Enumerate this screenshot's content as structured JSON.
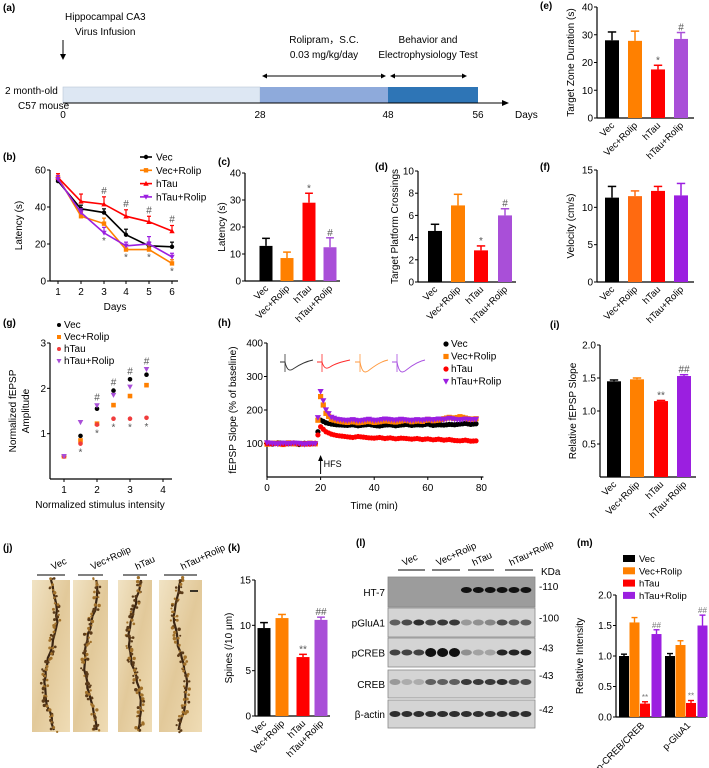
{
  "panel_labels": {
    "a": "(a)",
    "b": "(b)",
    "c": "(c)",
    "d": "(d)",
    "e": "(e)",
    "f": "(f)",
    "g": "(g)",
    "h": "(h)",
    "i": "(i)",
    "j": "(j)",
    "k": "(k)",
    "l": "(l)",
    "m": "(m)"
  },
  "colors": {
    "vec": "#000000",
    "vec_rolip": "#ff8000",
    "htau": "#ff0000",
    "htau_rolip": "#a94fd8",
    "htau_rolip_dark": "#9b1fe0"
  },
  "timeline": {
    "injection_line1": "Hippocampal CA3",
    "injection_line2": "Virus Infusion",
    "drug_line1": "Rolipram，S.C.",
    "drug_line2": "0.03 mg/kg/day",
    "test_line1": "Behavior and",
    "test_line2": "Electrophysiology Test",
    "animal_line1": "2 month-old",
    "animal_line2": "C57  mouse",
    "days": [
      "0",
      "28",
      "48",
      "56"
    ],
    "days_label": "Days",
    "segment_colors": [
      "#dde7f3",
      "#8eaadb",
      "#2e75b6"
    ]
  },
  "chart_data": [
    {
      "id": "b",
      "type": "line",
      "title": "",
      "xlabel": "Days",
      "ylabel": "Latency (s)",
      "x": [
        1,
        2,
        3,
        4,
        5,
        6
      ],
      "xtick_labels": [
        "1",
        "2",
        "3",
        "4",
        "5",
        "6"
      ],
      "ylim": [
        0,
        60
      ],
      "yticks": [
        0,
        20,
        40,
        60
      ],
      "ytick_labels": [
        "0",
        "20",
        "40",
        "60"
      ],
      "legend_position": "top-right",
      "series": [
        {
          "name": "Vec",
          "values": [
            54,
            39,
            37,
            25,
            19,
            18.5
          ],
          "errors": [
            2,
            2,
            2,
            3,
            2,
            2.5
          ]
        },
        {
          "name": "Vec+Rolip",
          "values": [
            56,
            35,
            31,
            17,
            17,
            9.5
          ],
          "errors": [
            2,
            2,
            3,
            2,
            2,
            2
          ]
        },
        {
          "name": "hTau",
          "values": [
            56,
            43,
            41.5,
            35,
            32,
            27
          ],
          "errors": [
            2,
            4,
            4,
            3.5,
            3,
            3
          ]
        },
        {
          "name": "hTau+Rolip",
          "values": [
            55,
            37,
            26,
            19,
            20,
            13
          ],
          "errors": [
            2,
            2,
            3,
            2,
            4,
            2
          ]
        }
      ],
      "annotations": [
        {
          "day": 3,
          "text": "#",
          "position": "above"
        },
        {
          "day": 4,
          "text": "#",
          "position": "above"
        },
        {
          "day": 5,
          "text": "#",
          "position": "above"
        },
        {
          "day": 6,
          "text": "#",
          "position": "above"
        },
        {
          "day": 3,
          "text": "*",
          "position": "below"
        },
        {
          "day": 4,
          "text": "*",
          "position": "below"
        },
        {
          "day": 5,
          "text": "*",
          "position": "below"
        },
        {
          "day": 6,
          "text": "*",
          "position": "below"
        }
      ]
    },
    {
      "id": "c",
      "type": "bar",
      "ylabel": "Latency (s)",
      "categories": [
        "Vec",
        "Vec+Rolip",
        "hTau",
        "hTau+Rolip"
      ],
      "values": [
        13,
        8.5,
        29,
        12.5
      ],
      "errors": [
        2.8,
        2.2,
        3.5,
        3.5
      ],
      "ylim": [
        0,
        40
      ],
      "yticks": [
        0,
        10,
        20,
        30,
        40
      ],
      "ytick_labels": [
        "0",
        "10",
        "20",
        "30",
        "40"
      ],
      "annotations": [
        "",
        "",
        "*",
        "#"
      ]
    },
    {
      "id": "d",
      "type": "bar",
      "ylabel": "Target Platform Crossings",
      "categories": [
        "Vec",
        "Vec+Rolip",
        "hTau",
        "hTau+Rolip"
      ],
      "values": [
        4.6,
        6.9,
        2.85,
        6.0
      ],
      "errors": [
        0.6,
        1.0,
        0.4,
        0.6
      ],
      "ylim": [
        0,
        10
      ],
      "yticks": [
        0,
        2,
        4,
        6,
        8,
        10
      ],
      "ytick_labels": [
        "0",
        "2",
        "4",
        "6",
        "8",
        "10"
      ],
      "annotations": [
        "",
        "",
        "*",
        "#"
      ]
    },
    {
      "id": "e",
      "type": "bar",
      "ylabel": "Target Zone Duration (s)",
      "categories": [
        "Vec",
        "Vec+Rolip",
        "hTau",
        "hTau+Rolip"
      ],
      "values": [
        28,
        27.8,
        17.5,
        28.5
      ],
      "errors": [
        3,
        3.5,
        1.5,
        2.3
      ],
      "ylim": [
        0,
        40
      ],
      "yticks": [
        0,
        10,
        20,
        30,
        40
      ],
      "ytick_labels": [
        "0",
        "10",
        "20",
        "30",
        "40"
      ],
      "annotations": [
        "",
        "",
        "*",
        "#"
      ]
    },
    {
      "id": "f",
      "type": "bar",
      "ylabel": "Velocity (cm/s)",
      "categories": [
        "Vec",
        "Vec+Rolip",
        "hTau",
        "hTau+Rolip"
      ],
      "values": [
        11.3,
        11.5,
        12.2,
        11.6
      ],
      "errors": [
        1.5,
        0.7,
        0.6,
        1.6
      ],
      "ylim": [
        0,
        15
      ],
      "yticks": [
        0,
        5,
        10,
        15
      ],
      "ytick_labels": [
        "0",
        "5",
        "10",
        "15"
      ],
      "annotations": [
        "",
        "",
        "",
        ""
      ]
    },
    {
      "id": "g",
      "type": "scatter",
      "xlabel": "Normalized stimulus intensity",
      "ylabel_line1": "Normalized fEPSP",
      "ylabel_line2": "Amplitude",
      "x": [
        1,
        1.5,
        2,
        2.5,
        3,
        3.5
      ],
      "xtick_labels": [
        "1",
        "2",
        "3",
        "4"
      ],
      "xticks": [
        1,
        2,
        3,
        4
      ],
      "ylim": [
        0,
        3
      ],
      "yticks": [
        1,
        2,
        3
      ],
      "ytick_labels": [
        "1",
        "2",
        "3"
      ],
      "legend_position": "top-left",
      "series": [
        {
          "name": "Vec",
          "values": [
            0.5,
            0.95,
            1.55,
            1.95,
            2.2,
            2.3
          ]
        },
        {
          "name": "Vec+Rolip",
          "values": [
            0.5,
            0.85,
            1.22,
            1.63,
            1.83,
            2.07
          ]
        },
        {
          "name": "hTau",
          "values": [
            0.5,
            0.78,
            1.2,
            1.33,
            1.33,
            1.35
          ]
        },
        {
          "name": "hTau+Rolip",
          "values": [
            0.5,
            1.25,
            1.62,
            1.85,
            2.03,
            2.42
          ]
        }
      ],
      "annotations": [
        {
          "x": 2,
          "text": "#",
          "position": "above"
        },
        {
          "x": 2.5,
          "text": "#",
          "position": "above"
        },
        {
          "x": 3,
          "text": "#",
          "position": "above"
        },
        {
          "x": 3.5,
          "text": "#",
          "position": "above"
        },
        {
          "x": 1.5,
          "text": "*",
          "position": "below"
        },
        {
          "x": 2,
          "text": "*",
          "position": "below"
        },
        {
          "x": 2.5,
          "text": "*",
          "position": "below"
        },
        {
          "x": 3,
          "text": "*",
          "position": "below"
        },
        {
          "x": 3.5,
          "text": "*",
          "position": "below"
        }
      ]
    },
    {
      "id": "h",
      "type": "line",
      "xlabel": "Time (min)",
      "ylabel": "fEPSP Slope (% of baseline)",
      "hfs_label": "HFS",
      "hfs_time": 20,
      "xlim": [
        0,
        80
      ],
      "xticks": [
        0,
        20,
        40,
        60,
        80
      ],
      "xtick_labels": [
        "0",
        "20",
        "40",
        "60",
        "80"
      ],
      "ylim": [
        0,
        400
      ],
      "yticks": [
        100,
        200,
        300,
        400
      ],
      "ytick_labels": [
        "100",
        "200",
        "300",
        "400"
      ],
      "legend_position": "top-right",
      "time": [
        0,
        2,
        4,
        6,
        8,
        10,
        12,
        14,
        16,
        18,
        20,
        22,
        24,
        26,
        28,
        30,
        32,
        34,
        36,
        38,
        40,
        42,
        44,
        46,
        48,
        50,
        52,
        54,
        56,
        58,
        60,
        62,
        64,
        66,
        68,
        70,
        72,
        74,
        76,
        78
      ],
      "series": [
        {
          "name": "Vec",
          "values": [
            100,
            98,
            102,
            101,
            99,
            100,
            97,
            101,
            99,
            100,
            170,
            162,
            158,
            156,
            155,
            154,
            156,
            153,
            155,
            157,
            154,
            152,
            155,
            156,
            153,
            155,
            157,
            154,
            156,
            155,
            158,
            154,
            156,
            155,
            157,
            156,
            158,
            160,
            157,
            159
          ]
        },
        {
          "name": "Vec+Rolip",
          "values": [
            98,
            101,
            100,
            97,
            102,
            99,
            100,
            98,
            101,
            99,
            240,
            190,
            172,
            168,
            165,
            163,
            166,
            162,
            164,
            167,
            163,
            165,
            168,
            166,
            164,
            167,
            170,
            165,
            168,
            166,
            172,
            168,
            170,
            174,
            178,
            175,
            180,
            176,
            172,
            174
          ]
        },
        {
          "name": "hTau",
          "values": [
            100,
            99,
            101,
            98,
            100,
            102,
            99,
            100,
            98,
            101,
            150,
            135,
            128,
            124,
            122,
            120,
            118,
            121,
            119,
            117,
            116,
            118,
            115,
            117,
            114,
            116,
            115,
            113,
            115,
            112,
            114,
            111,
            113,
            110,
            112,
            109,
            108,
            110,
            107,
            108
          ]
        },
        {
          "name": "hTau+Rolip",
          "values": [
            102,
            100,
            98,
            101,
            99,
            101,
            100,
            97,
            100,
            99,
            255,
            200,
            178,
            172,
            170,
            168,
            171,
            167,
            169,
            172,
            168,
            170,
            173,
            171,
            169,
            172,
            170,
            168,
            171,
            169,
            172,
            170,
            173,
            171,
            175,
            172,
            170,
            173,
            171,
            172
          ]
        }
      ]
    },
    {
      "id": "i",
      "type": "bar",
      "ylabel": "Relative fEPSP Slope",
      "categories": [
        "Vec",
        "Vec+Rolip",
        "hTau",
        "hTau+Rolip"
      ],
      "values": [
        1.45,
        1.48,
        1.15,
        1.53
      ],
      "errors": [
        0.02,
        0.02,
        0.01,
        0.02
      ],
      "ylim": [
        0,
        2
      ],
      "yticks": [
        0.5,
        1.0,
        1.5,
        2.0
      ],
      "ytick_labels": [
        "0.5",
        "1.0",
        "1.5",
        "2.0"
      ],
      "annotations": [
        "",
        "",
        "**",
        "##"
      ]
    },
    {
      "id": "k",
      "type": "bar",
      "ylabel": "Spines (/10 μm)",
      "categories": [
        "Vec",
        "Vec+Rolip",
        "hTau",
        "hTau+Rolip"
      ],
      "values": [
        9.7,
        10.8,
        6.5,
        10.6
      ],
      "errors": [
        0.6,
        0.4,
        0.3,
        0.3
      ],
      "ylim": [
        0,
        15
      ],
      "yticks": [
        0,
        5,
        10,
        15
      ],
      "ytick_labels": [
        "0",
        "5",
        "10",
        "15"
      ],
      "annotations": [
        "",
        "",
        "**",
        "##"
      ]
    },
    {
      "id": "m",
      "type": "bar",
      "ylabel": "Relative Intensity",
      "categories": [
        "p-CREB/CREB",
        "p-GluA1"
      ],
      "ylim": [
        0,
        2
      ],
      "yticks": [
        0,
        0.5,
        1.0,
        1.5,
        2.0
      ],
      "ytick_labels": [
        "0.0",
        "0.5",
        "1.0",
        "1.5",
        "2.0"
      ],
      "legend_position": "top",
      "series": [
        {
          "name": "Vec",
          "values": [
            1.0,
            1.0
          ],
          "errors": [
            0.03,
            0.04
          ],
          "annotations": [
            "",
            ""
          ]
        },
        {
          "name": "Vec+Rolip",
          "values": [
            1.55,
            1.18
          ],
          "errors": [
            0.08,
            0.07
          ],
          "annotations": [
            "",
            ""
          ]
        },
        {
          "name": "hTau",
          "values": [
            0.22,
            0.23
          ],
          "errors": [
            0.03,
            0.04
          ],
          "annotations": [
            "**",
            "**"
          ]
        },
        {
          "name": "hTau+Rolip",
          "values": [
            1.36,
            1.5
          ],
          "errors": [
            0.07,
            0.17
          ],
          "annotations": [
            "##",
            "##"
          ]
        }
      ]
    }
  ],
  "micrographs": {
    "groups": [
      "Vec",
      "Vec+Rolip",
      "hTau",
      "hTau+Rolip"
    ]
  },
  "western_blot": {
    "groups": [
      "Vec",
      "Vec+Rolip",
      "hTau",
      "hTau+Rolip"
    ],
    "kda_header": "KDa",
    "rows": [
      {
        "label": "HT-7",
        "kda": "-110",
        "band_intensity": [
          0,
          0,
          0,
          0,
          0,
          0,
          1,
          1,
          1,
          1,
          1,
          1
        ]
      },
      {
        "label": "pGluA1",
        "kda": "-100",
        "band_intensity": [
          0.6,
          0.7,
          0.85,
          0.75,
          0.8,
          0.8,
          0.3,
          0.35,
          0.4,
          0.7,
          0.6,
          0.6
        ]
      },
      {
        "label": "pCREB",
        "kda": "-43",
        "band_intensity": [
          0.75,
          0.75,
          0.75,
          1,
          1,
          1,
          0.35,
          0.25,
          0.25,
          0.9,
          0.9,
          0.9
        ]
      },
      {
        "label": "CREB",
        "kda": "-43",
        "band_intensity": [
          0.3,
          0.2,
          0.2,
          0.6,
          0.6,
          0.6,
          0.8,
          0.8,
          0.8,
          0.85,
          0.7,
          0.7
        ]
      },
      {
        "label": "β-actin",
        "kda": "-42",
        "band_intensity": [
          0.85,
          0.85,
          0.85,
          0.85,
          0.85,
          0.85,
          0.85,
          0.85,
          0.85,
          0.85,
          0.85,
          0.85
        ]
      }
    ]
  }
}
